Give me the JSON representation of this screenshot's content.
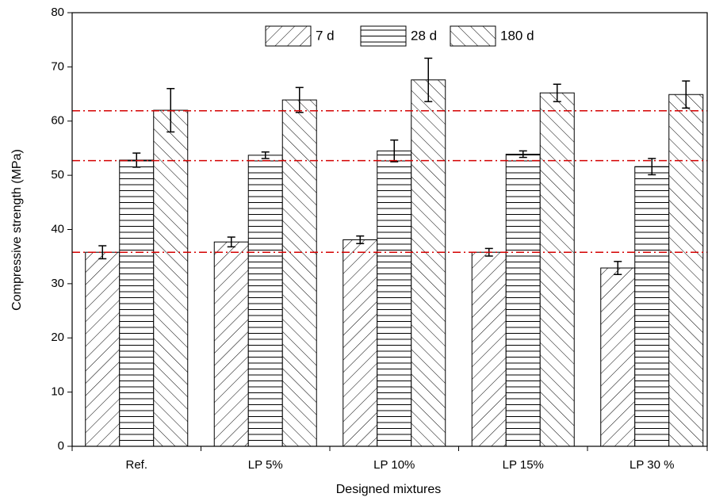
{
  "chart_data": {
    "type": "bar",
    "x_label": "Designed mixtures",
    "y_label": "Compressive strength (MPa)",
    "categories": [
      "Ref.",
      "LP 5%",
      "LP 10%",
      "LP 15%",
      "LP 30 %"
    ],
    "series": [
      {
        "name": "7 d",
        "color": "#000000",
        "hatch": "forward-diagonal",
        "values": [
          35.8,
          37.7,
          38.1,
          35.8,
          32.9
        ],
        "errors": [
          1.2,
          0.9,
          0.7,
          0.7,
          1.2
        ]
      },
      {
        "name": "28 d",
        "color": "#000000",
        "hatch": "horizontal",
        "values": [
          52.8,
          53.7,
          54.5,
          53.9,
          51.6
        ],
        "errors": [
          1.3,
          0.6,
          2.0,
          0.6,
          1.5
        ]
      },
      {
        "name": "180 d",
        "color": "#000000",
        "hatch": "back-diagonal",
        "values": [
          62.0,
          63.9,
          67.6,
          65.2,
          64.9
        ],
        "errors": [
          4.0,
          2.3,
          4.0,
          1.6,
          2.5
        ]
      }
    ],
    "reference_lines": [
      35.8,
      52.7,
      61.9
    ],
    "reference_line_color": "#d40000",
    "ylim": [
      0,
      80
    ],
    "yticks": [
      0,
      10,
      20,
      30,
      40,
      50,
      60,
      70,
      80
    ],
    "legend": "top"
  }
}
